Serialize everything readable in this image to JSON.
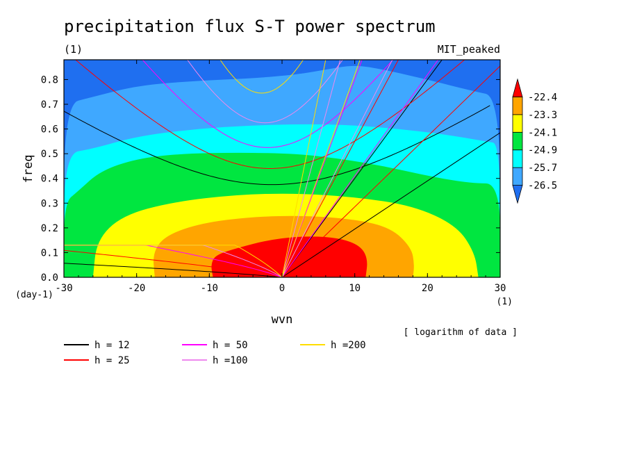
{
  "chart_data": {
    "type": "heatmap",
    "title": "precipitation flux S-T power spectrum",
    "subtitle_left": "(1)",
    "subtitle_right": "MIT_peaked",
    "xlabel": "wvn",
    "ylabel": "freq",
    "x_unit": "(1)",
    "y_unit": "(day-1)",
    "note": "[ logarithm of data ]",
    "xlim": [
      -30,
      30
    ],
    "ylim": [
      0,
      0.88
    ],
    "x_ticks": [
      -30,
      -20,
      -10,
      0,
      10,
      20,
      30
    ],
    "y_ticks": [
      0.0,
      0.1,
      0.2,
      0.3,
      0.4,
      0.5,
      0.6,
      0.7,
      0.8
    ],
    "y_tick_labels": [
      "0.0",
      "0.1",
      "0.2",
      "0.3",
      "0.4",
      "0.5",
      "0.6",
      "0.7",
      "0.8"
    ],
    "colorbar": {
      "levels": [
        -26.5,
        -25.7,
        -24.9,
        -24.1,
        -23.3,
        -22.4
      ],
      "labels": [
        "-26.5",
        "-25.7",
        "-24.9",
        "-24.1",
        "-23.3",
        "-22.4"
      ],
      "colors": [
        "#1f6ff0",
        "#3fa8ff",
        "#00ffff",
        "#00e640",
        "#ffff00",
        "#ffa500",
        "#ff0000"
      ]
    },
    "contours": [
      {
        "level_index": 6,
        "color": "#ff0000",
        "points": [
          [
            -9.5,
            0
          ],
          [
            -9.8,
            0.05
          ],
          [
            -9.2,
            0.09
          ],
          [
            -6,
            0.12
          ],
          [
            -2,
            0.15
          ],
          [
            2,
            0.165
          ],
          [
            6,
            0.165
          ],
          [
            9,
            0.15
          ],
          [
            11,
            0.12
          ],
          [
            11.8,
            0.07
          ],
          [
            11.5,
            0
          ]
        ]
      },
      {
        "level_index": 5,
        "color": "#ffa500",
        "points": [
          [
            -17.5,
            0
          ],
          [
            -17.8,
            0.1
          ],
          [
            -16,
            0.17
          ],
          [
            -11,
            0.22
          ],
          [
            -4,
            0.245
          ],
          [
            3,
            0.25
          ],
          [
            10,
            0.235
          ],
          [
            15,
            0.2
          ],
          [
            17.8,
            0.12
          ],
          [
            18.2,
            0.05
          ],
          [
            18,
            0
          ]
        ]
      },
      {
        "level_index": 4,
        "color": "#ffff00",
        "points": [
          [
            -26,
            0
          ],
          [
            -25.5,
            0.15
          ],
          [
            -22,
            0.25
          ],
          [
            -15,
            0.305
          ],
          [
            -6,
            0.335
          ],
          [
            2,
            0.34
          ],
          [
            10,
            0.325
          ],
          [
            18,
            0.29
          ],
          [
            24,
            0.21
          ],
          [
            26.5,
            0.1
          ],
          [
            27,
            0
          ]
        ]
      },
      {
        "level_index": 3,
        "color": "#00e640",
        "points": [
          [
            -30,
            0
          ],
          [
            -30,
            0.3
          ],
          [
            -28,
            0.35
          ],
          [
            -25,
            0.43
          ],
          [
            -20,
            0.48
          ],
          [
            -14,
            0.5
          ],
          [
            -6,
            0.505
          ],
          [
            2,
            0.5
          ],
          [
            8,
            0.48
          ],
          [
            14,
            0.45
          ],
          [
            20,
            0.41
          ],
          [
            26,
            0.38
          ],
          [
            30,
            0.38
          ],
          [
            30,
            0
          ]
        ]
      },
      {
        "level_index": 2,
        "color": "#00ffff",
        "points": [
          [
            -30,
            0
          ],
          [
            -30,
            0.5
          ],
          [
            -26,
            0.52
          ],
          [
            -20,
            0.57
          ],
          [
            -12,
            0.6
          ],
          [
            -4,
            0.615
          ],
          [
            4,
            0.62
          ],
          [
            10,
            0.615
          ],
          [
            16,
            0.6
          ],
          [
            22,
            0.58
          ],
          [
            28,
            0.55
          ],
          [
            30,
            0.54
          ],
          [
            30,
            0
          ]
        ]
      },
      {
        "level_index": 1,
        "color": "#3fa8ff",
        "points": [
          [
            -30,
            0
          ],
          [
            -30,
            0.7
          ],
          [
            -26,
            0.73
          ],
          [
            -20,
            0.775
          ],
          [
            -12,
            0.795
          ],
          [
            -4,
            0.805
          ],
          [
            2,
            0.82
          ],
          [
            6,
            0.84
          ],
          [
            10,
            0.86
          ],
          [
            14,
            0.84
          ],
          [
            20,
            0.8
          ],
          [
            26,
            0.755
          ],
          [
            30,
            0.73
          ],
          [
            30,
            0
          ]
        ]
      }
    ],
    "dispersion_curves": [
      {
        "name": "h = 12",
        "color": "#000000",
        "legend_label": "h = 12"
      },
      {
        "name": "h = 25",
        "color": "#ff0000",
        "legend_label": "h = 25"
      },
      {
        "name": "h = 50",
        "color": "#ff00ff",
        "legend_label": "h = 50"
      },
      {
        "name": "h =100",
        "color": "#ee88ee",
        "legend_label": "h =100"
      },
      {
        "name": "h =200",
        "color": "#ffdd00",
        "legend_label": "h =200"
      }
    ],
    "dispersion_params": {
      "ny_freq": [
        0.375,
        0.44,
        0.525,
        0.625,
        0.745
      ],
      "kelvin_slope": [
        0.0195,
        0.0285,
        0.041,
        0.058,
        0.082
      ],
      "rossby_k0": [
        16,
        11,
        7.5,
        5.5,
        4
      ]
    },
    "legend_placement": "bottom",
    "grid": false
  }
}
